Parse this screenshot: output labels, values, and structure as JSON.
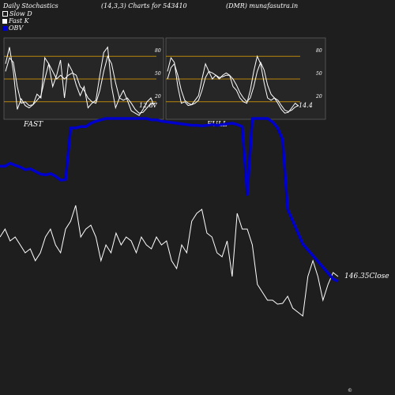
{
  "header": {
    "left": "Daily Stochastics",
    "mid": "(14,3,3) Charts for 543410",
    "right": "(DMR) munafasutra.in"
  },
  "legend": [
    {
      "label": "Slow D",
      "color": "#1e1e1e"
    },
    {
      "label": "Fast K",
      "color": "#ffffff"
    },
    {
      "label": "OBV",
      "color": "#0000cc"
    }
  ],
  "footer": "©",
  "colors": {
    "background": "#1e1e1e",
    "panel": "#262626",
    "level_line": "#b8860b",
    "obv": "#0000cc",
    "close": "#ffffff"
  },
  "chart_data": [
    {
      "type": "line",
      "panel": "FAST",
      "label": "FAST",
      "ylim": [
        0,
        100
      ],
      "levels": [
        20,
        50,
        80
      ],
      "tick_labels": [
        "80",
        "50",
        "20"
      ],
      "end_value_label": "12.87",
      "series": [
        {
          "name": "Fast K",
          "values": [
            70,
            92,
            60,
            10,
            24,
            15,
            12,
            16,
            30,
            25,
            78,
            70,
            40,
            55,
            75,
            25,
            70,
            60,
            42,
            28,
            40,
            12,
            18,
            22,
            55,
            85,
            92,
            40,
            12,
            25,
            35,
            22,
            8,
            5,
            2,
            10,
            20,
            25,
            12.87
          ]
        },
        {
          "name": "Slow D",
          "values": [
            60,
            78,
            72,
            40,
            18,
            20,
            15,
            16,
            22,
            28,
            50,
            70,
            60,
            50,
            55,
            50,
            55,
            58,
            55,
            40,
            35,
            25,
            20,
            18,
            35,
            60,
            80,
            70,
            45,
            25,
            22,
            25,
            18,
            10,
            5,
            6,
            12,
            18,
            17
          ]
        }
      ]
    },
    {
      "type": "line",
      "panel": "FULL",
      "label": "FULL",
      "ylim": [
        0,
        100
      ],
      "levels": [
        20,
        50,
        80
      ],
      "tick_labels": [
        "80",
        "50",
        "20"
      ],
      "end_value_label": "14.4",
      "series": [
        {
          "name": "Fast K",
          "values": [
            60,
            78,
            72,
            40,
            18,
            20,
            15,
            16,
            22,
            28,
            50,
            70,
            60,
            50,
            55,
            50,
            55,
            58,
            55,
            40,
            35,
            25,
            20,
            18,
            35,
            60,
            80,
            70,
            45,
            25,
            22,
            25,
            18,
            10,
            5,
            6,
            12,
            18,
            14.4
          ]
        },
        {
          "name": "Slow D",
          "values": [
            50,
            65,
            70,
            55,
            35,
            22,
            18,
            16,
            18,
            22,
            35,
            52,
            60,
            58,
            55,
            52,
            53,
            55,
            55,
            50,
            42,
            32,
            25,
            20,
            25,
            40,
            60,
            72,
            62,
            42,
            30,
            25,
            22,
            15,
            9,
            7,
            9,
            13,
            15
          ]
        }
      ]
    },
    {
      "type": "line",
      "panel": "OBV and Close",
      "label": "Close",
      "end_value_label": "146.35",
      "series": [
        {
          "name": "OBV",
          "values": [
            40,
            40,
            47,
            42,
            38,
            32,
            34,
            28,
            22,
            20,
            23,
            17,
            8,
            9,
            -28,
            -28,
            -30,
            -30,
            -35,
            -38,
            -40,
            -42,
            -42,
            -42,
            -42,
            -42,
            -42,
            -42,
            -42,
            -42,
            -40,
            -40,
            -38,
            -37,
            -36,
            -35,
            -34,
            -33,
            -32,
            -32,
            -31,
            -32,
            -33,
            -32,
            -33,
            -34,
            -35,
            -33,
            -30,
            -25,
            -42,
            -42,
            -42,
            -42,
            -45,
            -50,
            -60,
            -120,
            -130,
            -140,
            -150,
            -155,
            -160,
            -165,
            -170,
            -175,
            -180,
            -182
          ]
        },
        {
          "name": "Close",
          "values": [
            300,
            290,
            305,
            300,
            310,
            320,
            315,
            330,
            320,
            300,
            290,
            310,
            320,
            290,
            280,
            260,
            300,
            290,
            285,
            300,
            330,
            310,
            320,
            295,
            310,
            300,
            305,
            320,
            300,
            310,
            315,
            300,
            310,
            305,
            330,
            340,
            310,
            320,
            280,
            270,
            265,
            295,
            300,
            320,
            325,
            305,
            350,
            270,
            290,
            290,
            310,
            360,
            370,
            380,
            380,
            385,
            384,
            375,
            390,
            395,
            400,
            350,
            330,
            350,
            380,
            360,
            345,
            350
          ]
        }
      ]
    }
  ]
}
